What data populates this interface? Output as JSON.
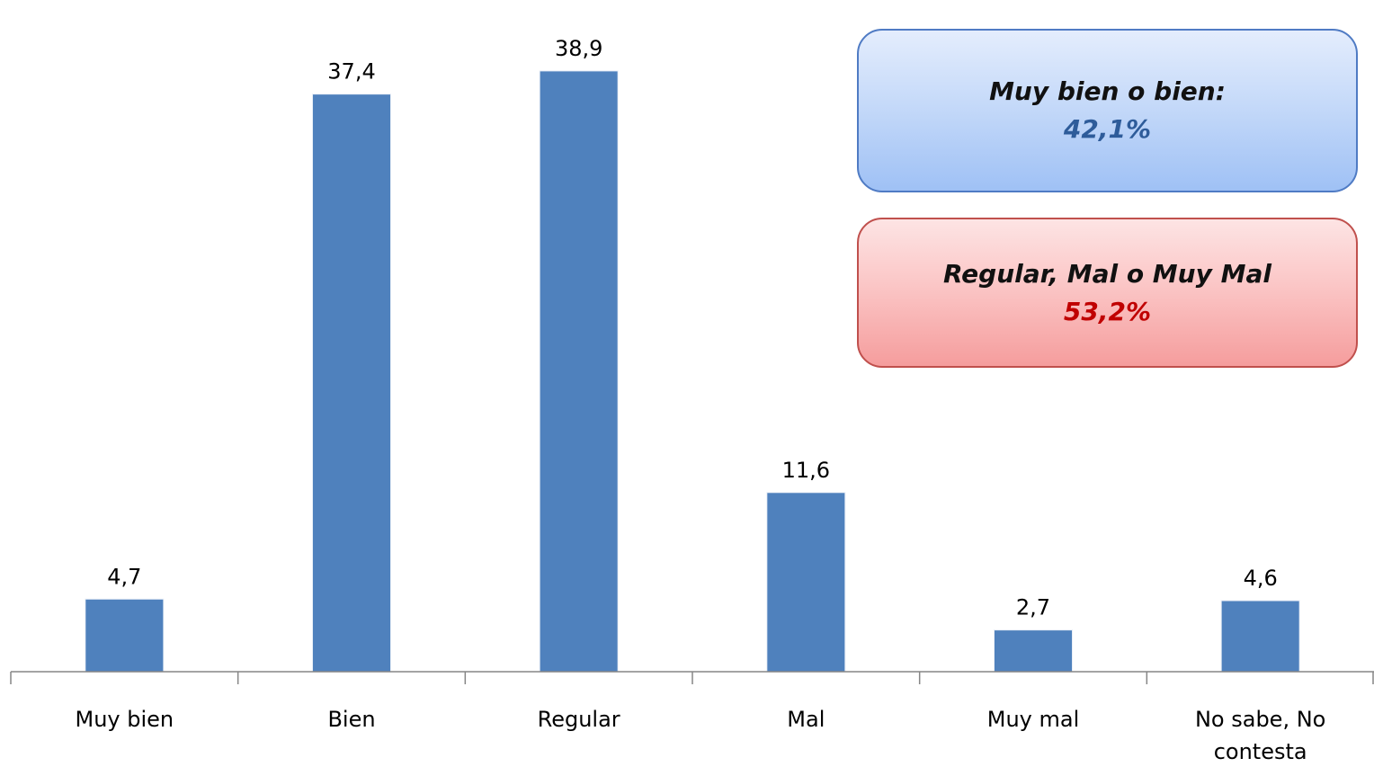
{
  "chart_data": {
    "type": "bar",
    "categories": [
      "Muy bien",
      "Bien",
      "Regular",
      "Mal",
      "Muy mal",
      "No sabe, No contesta"
    ],
    "category_lines": [
      [
        "Muy bien"
      ],
      [
        "Bien"
      ],
      [
        "Regular"
      ],
      [
        "Mal"
      ],
      [
        "Muy mal"
      ],
      [
        "No sabe, No",
        "contesta"
      ]
    ],
    "values": [
      4.7,
      37.4,
      38.9,
      11.6,
      2.7,
      4.6
    ],
    "value_labels": [
      "4,7",
      "37,4",
      "38,9",
      "11,6",
      "2,7",
      "4,6"
    ],
    "ylim": [
      0,
      40
    ],
    "grid": false,
    "bar_color": "#4f81bd",
    "title": "",
    "xlabel": "",
    "ylabel": ""
  },
  "summary_boxes": {
    "positive": {
      "label": "Muy bien o bien:",
      "value": "42,1%",
      "color": "#2e5c9a"
    },
    "negative": {
      "label": "Regular, Mal o Muy Mal",
      "value": "53,2%",
      "color": "#c00000"
    }
  }
}
